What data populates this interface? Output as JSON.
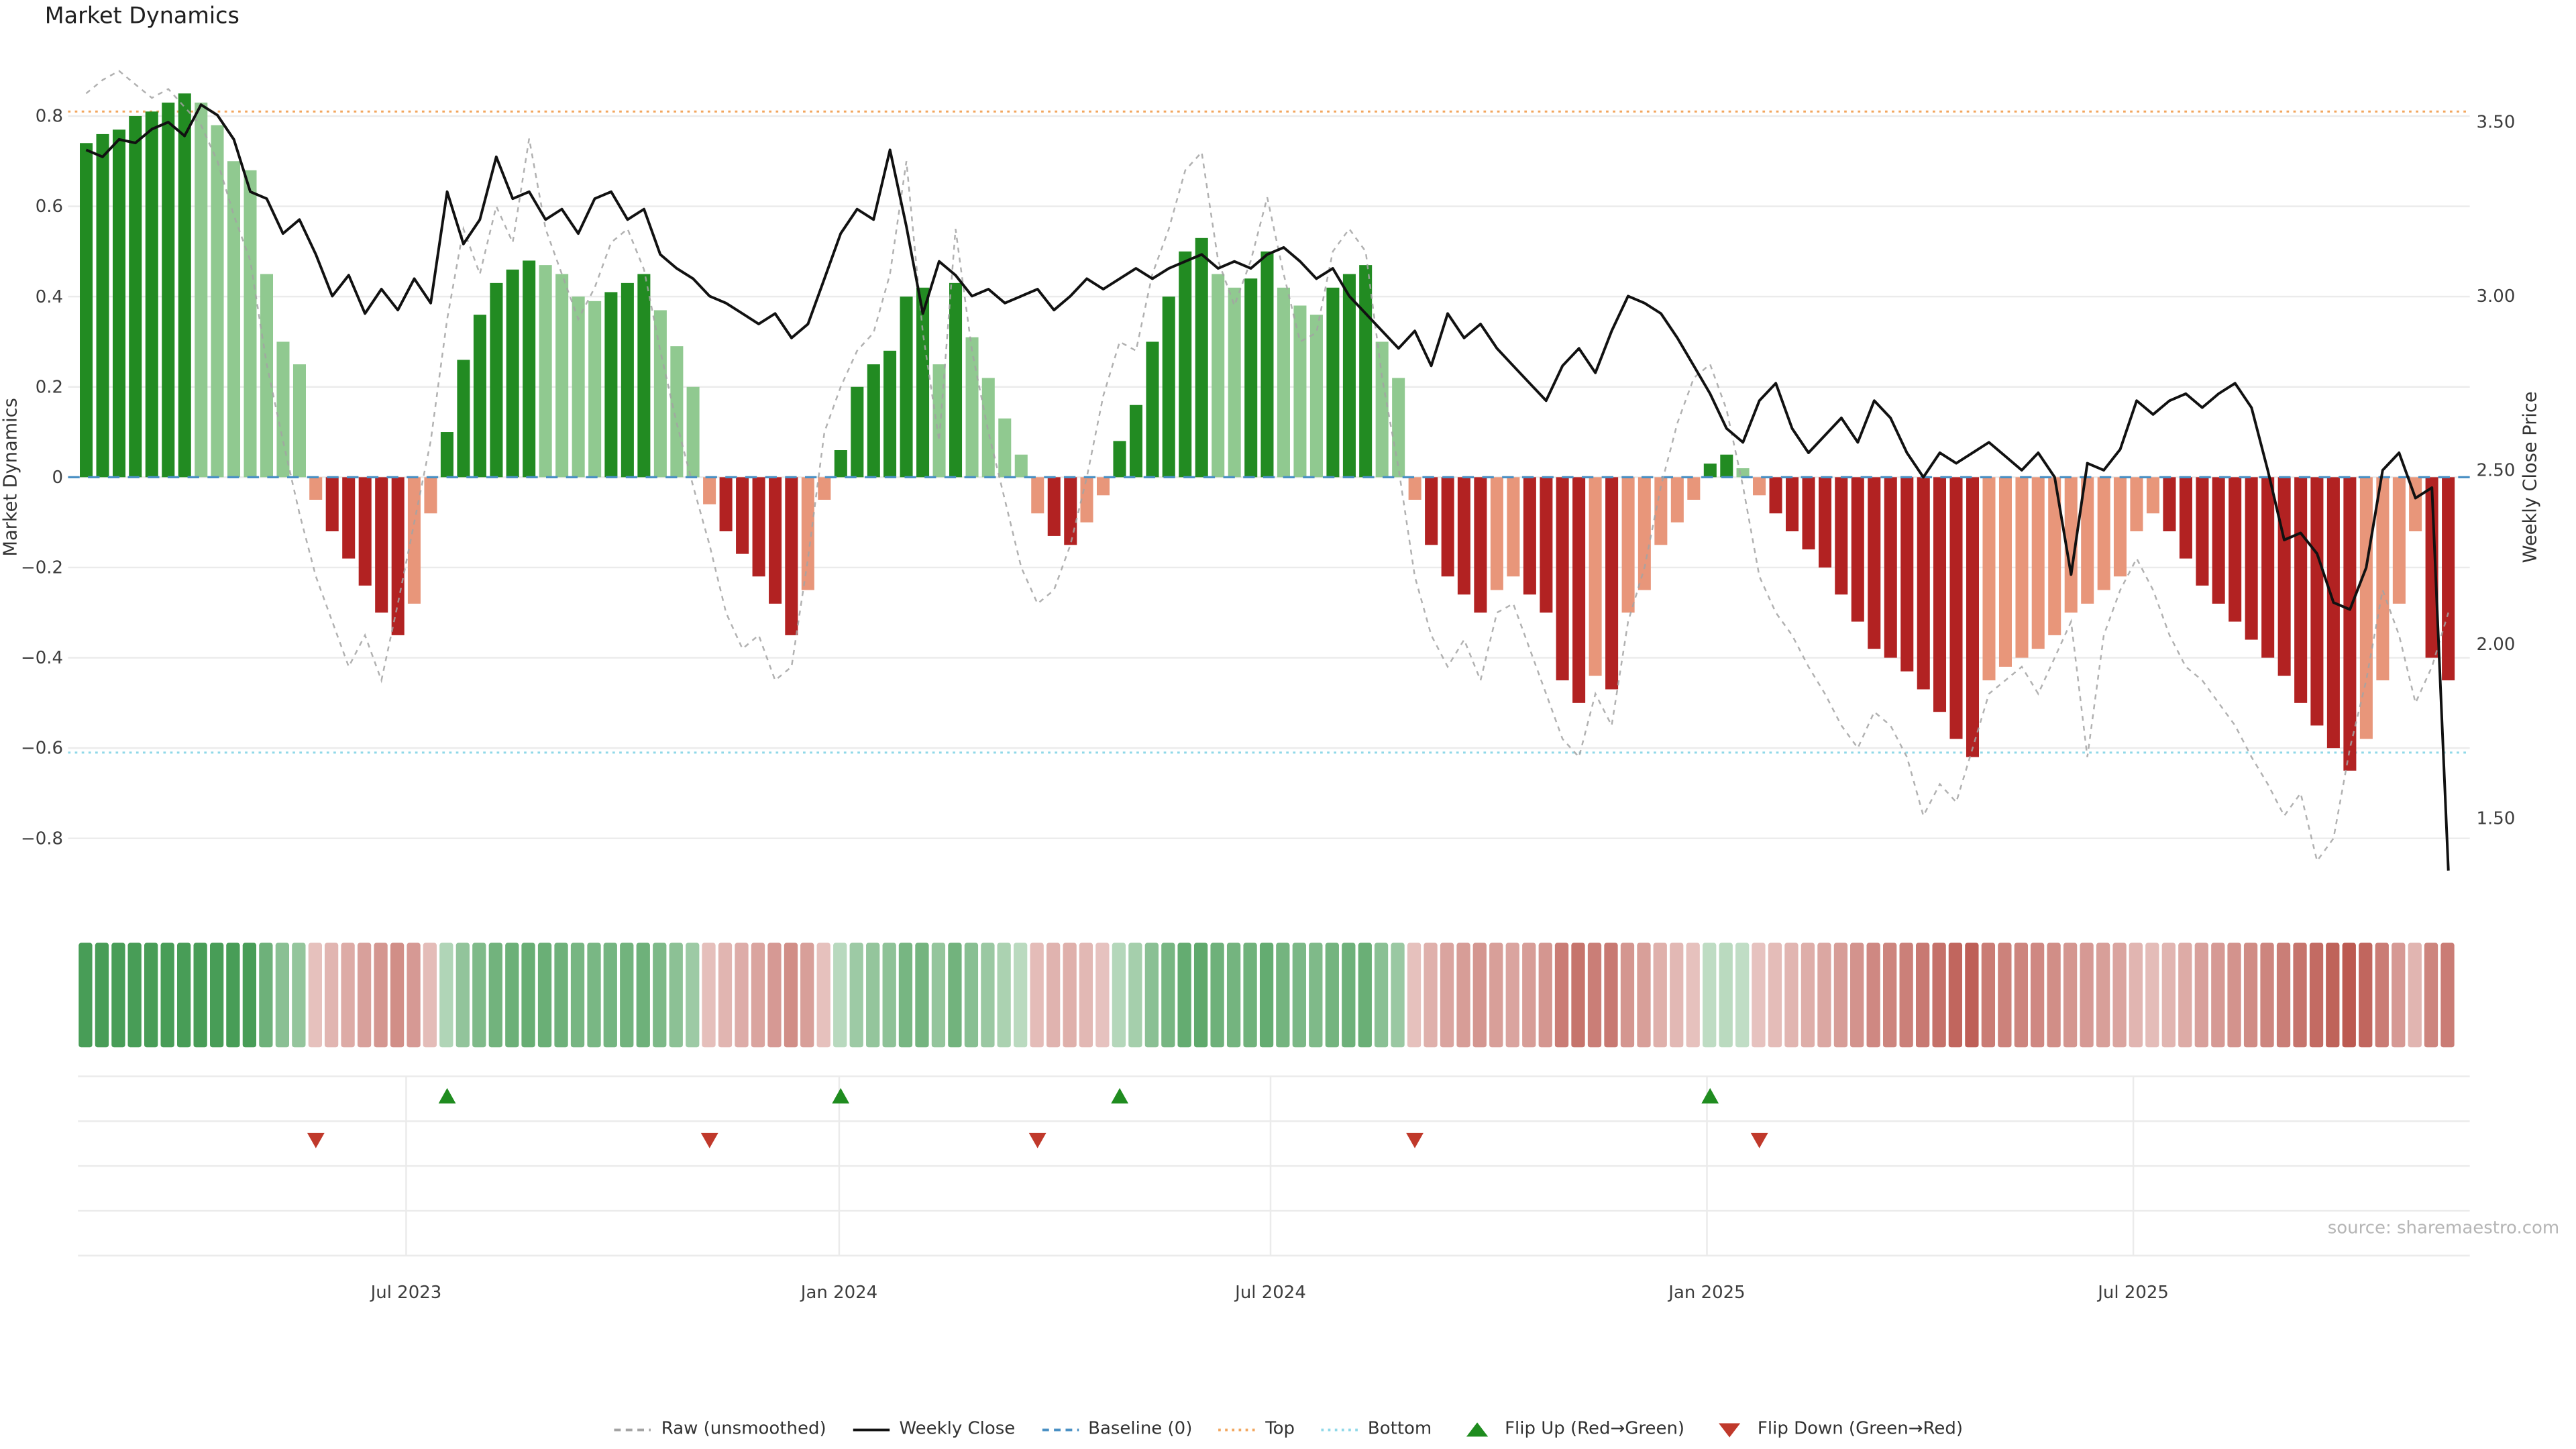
{
  "page": {
    "title": "Market Dynamics",
    "source_note": "source: sharemaestro.com"
  },
  "axes": {
    "left_label": "Market Dynamics",
    "right_label": "Weekly Close Price",
    "left_ticks": [
      0.8,
      0.6,
      0.4,
      0.2,
      0,
      -0.2,
      -0.4,
      -0.6,
      -0.8
    ],
    "right_ticks": [
      3.5,
      3.0,
      2.5,
      2.0,
      1.5
    ],
    "x_ticks": [
      {
        "label": "Jul 2023",
        "week": 19.5
      },
      {
        "label": "Jan 2024",
        "week": 45.9
      },
      {
        "label": "Jul 2024",
        "week": 72.2
      },
      {
        "label": "Jan 2025",
        "week": 98.8
      },
      {
        "label": "Jul 2025",
        "week": 124.8
      }
    ]
  },
  "legend": {
    "items": [
      {
        "label": "Raw (unsmoothed)",
        "swatch": "dashed-line",
        "color": "#a3a3a3"
      },
      {
        "label": "Weekly Close",
        "swatch": "solid-line",
        "color": "#111111"
      },
      {
        "label": "Baseline (0)",
        "swatch": "dashed-line",
        "color": "#4a90c4"
      },
      {
        "label": "Top",
        "swatch": "dotted-line",
        "color": "#f2a65e"
      },
      {
        "label": "Bottom",
        "swatch": "dotted-line",
        "color": "#8fd8e8"
      },
      {
        "label": "Flip Up (Red→Green)",
        "swatch": "triangle-up",
        "color": "#1f8c1f"
      },
      {
        "label": "Flip Down (Green→Red)",
        "swatch": "triangle-down",
        "color": "#c0392b"
      }
    ]
  },
  "colors": {
    "bar_green_strong": "#228B22",
    "bar_green_soft": "#90c990",
    "bar_red_strong": "#b22222",
    "bar_red_soft": "#e8967a",
    "weekly_close": "#111111",
    "raw": "#a3a3a3",
    "baseline": "#4a90c4",
    "top": "#f2a65e",
    "bottom": "#8fd8e8",
    "flip_up": "#1f8c1f",
    "flip_down": "#c0392b",
    "grid": "#ebebeb",
    "tick_text": "#3d3d3d"
  },
  "chart_data": {
    "type": "combo",
    "frequency": "weekly",
    "n_points": 145,
    "title": "Market Dynamics",
    "left_ylim": [
      -0.91,
      0.91
    ],
    "right_ylim": [
      1.3,
      3.66
    ],
    "baseline": 0,
    "top_line": 0.81,
    "bottom_line": -0.61,
    "flip_up_weeks": [
      22,
      46,
      63,
      99
    ],
    "flip_down_weeks": [
      14,
      38,
      58,
      81,
      102
    ],
    "heatmap": "strip of weekly cells colored from bar series (green positive, red negative, intensity = magnitude)",
    "series": [
      {
        "name": "Market Dynamics (smoothed bars)",
        "type": "bar",
        "axis": "left",
        "values": [
          0.74,
          0.76,
          0.77,
          0.8,
          0.81,
          0.83,
          0.85,
          0.83,
          0.78,
          0.7,
          0.68,
          0.45,
          0.3,
          0.25,
          -0.05,
          -0.12,
          -0.18,
          -0.24,
          -0.3,
          -0.35,
          -0.28,
          -0.08,
          0.1,
          0.26,
          0.36,
          0.43,
          0.46,
          0.48,
          0.47,
          0.45,
          0.4,
          0.39,
          0.41,
          0.43,
          0.45,
          0.37,
          0.29,
          0.2,
          -0.06,
          -0.12,
          -0.17,
          -0.22,
          -0.28,
          -0.35,
          -0.25,
          -0.05,
          0.06,
          0.2,
          0.25,
          0.28,
          0.4,
          0.42,
          0.25,
          0.43,
          0.31,
          0.22,
          0.13,
          0.05,
          -0.08,
          -0.13,
          -0.15,
          -0.1,
          -0.04,
          0.08,
          0.16,
          0.3,
          0.4,
          0.5,
          0.53,
          0.45,
          0.42,
          0.44,
          0.5,
          0.42,
          0.38,
          0.36,
          0.42,
          0.45,
          0.47,
          0.3,
          0.22,
          -0.05,
          -0.15,
          -0.22,
          -0.26,
          -0.3,
          -0.25,
          -0.22,
          -0.26,
          -0.3,
          -0.45,
          -0.5,
          -0.44,
          -0.47,
          -0.3,
          -0.25,
          -0.15,
          -0.1,
          -0.05,
          0.03,
          0.05,
          0.02,
          -0.04,
          -0.08,
          -0.12,
          -0.16,
          -0.2,
          -0.26,
          -0.32,
          -0.38,
          -0.4,
          -0.43,
          -0.47,
          -0.52,
          -0.58,
          -0.62,
          -0.45,
          -0.42,
          -0.4,
          -0.38,
          -0.35,
          -0.3,
          -0.28,
          -0.25,
          -0.22,
          -0.12,
          -0.08,
          -0.12,
          -0.18,
          -0.24,
          -0.28,
          -0.32,
          -0.36,
          -0.4,
          -0.44,
          -0.5,
          -0.55,
          -0.6,
          -0.65,
          -0.58,
          -0.45,
          -0.28,
          -0.12,
          -0.4,
          -0.45
        ]
      },
      {
        "name": "Raw (unsmoothed)",
        "type": "line",
        "line_style": "dashed",
        "axis": "left",
        "values": [
          0.85,
          0.88,
          0.9,
          0.87,
          0.84,
          0.86,
          0.82,
          0.78,
          0.7,
          0.58,
          0.48,
          0.25,
          0.08,
          -0.08,
          -0.22,
          -0.32,
          -0.42,
          -0.35,
          -0.45,
          -0.28,
          -0.1,
          0.08,
          0.35,
          0.55,
          0.45,
          0.6,
          0.52,
          0.75,
          0.55,
          0.45,
          0.35,
          0.42,
          0.52,
          0.55,
          0.46,
          0.28,
          0.12,
          -0.02,
          -0.15,
          -0.3,
          -0.38,
          -0.35,
          -0.45,
          -0.42,
          -0.18,
          0.1,
          0.2,
          0.28,
          0.32,
          0.45,
          0.7,
          0.32,
          0.08,
          0.55,
          0.28,
          0.1,
          -0.05,
          -0.2,
          -0.28,
          -0.25,
          -0.15,
          0.0,
          0.18,
          0.3,
          0.28,
          0.45,
          0.55,
          0.68,
          0.72,
          0.48,
          0.38,
          0.48,
          0.62,
          0.45,
          0.3,
          0.32,
          0.5,
          0.55,
          0.5,
          0.22,
          0.02,
          -0.22,
          -0.35,
          -0.42,
          -0.36,
          -0.45,
          -0.3,
          -0.28,
          -0.38,
          -0.48,
          -0.58,
          -0.62,
          -0.48,
          -0.55,
          -0.32,
          -0.2,
          -0.02,
          0.12,
          0.22,
          0.25,
          0.15,
          -0.02,
          -0.22,
          -0.3,
          -0.35,
          -0.42,
          -0.48,
          -0.55,
          -0.6,
          -0.52,
          -0.55,
          -0.62,
          -0.75,
          -0.68,
          -0.72,
          -0.6,
          -0.48,
          -0.45,
          -0.42,
          -0.48,
          -0.4,
          -0.32,
          -0.62,
          -0.35,
          -0.25,
          -0.18,
          -0.25,
          -0.35,
          -0.42,
          -0.45,
          -0.5,
          -0.55,
          -0.62,
          -0.68,
          -0.75,
          -0.7,
          -0.85,
          -0.8,
          -0.6,
          -0.45,
          -0.25,
          -0.35,
          -0.5,
          -0.42,
          -0.3
        ]
      },
      {
        "name": "Weekly Close",
        "type": "line",
        "axis": "right",
        "values": [
          3.42,
          3.4,
          3.45,
          3.44,
          3.48,
          3.5,
          3.46,
          3.55,
          3.52,
          3.45,
          3.3,
          3.28,
          3.18,
          3.22,
          3.12,
          3.0,
          3.06,
          2.95,
          3.02,
          2.96,
          3.05,
          2.98,
          3.3,
          3.15,
          3.22,
          3.4,
          3.28,
          3.3,
          3.22,
          3.25,
          3.18,
          3.28,
          3.3,
          3.22,
          3.25,
          3.12,
          3.08,
          3.05,
          3.0,
          2.98,
          2.95,
          2.92,
          2.95,
          2.88,
          2.92,
          3.05,
          3.18,
          3.25,
          3.22,
          3.42,
          3.2,
          2.95,
          3.1,
          3.06,
          3.0,
          3.02,
          2.98,
          3.0,
          3.02,
          2.96,
          3.0,
          3.05,
          3.02,
          3.05,
          3.08,
          3.05,
          3.08,
          3.1,
          3.12,
          3.08,
          3.1,
          3.08,
          3.12,
          3.14,
          3.1,
          3.05,
          3.08,
          3.0,
          2.95,
          2.9,
          2.85,
          2.9,
          2.8,
          2.95,
          2.88,
          2.92,
          2.85,
          2.8,
          2.75,
          2.7,
          2.8,
          2.85,
          2.78,
          2.9,
          3.0,
          2.98,
          2.95,
          2.88,
          2.8,
          2.72,
          2.62,
          2.58,
          2.7,
          2.75,
          2.62,
          2.55,
          2.6,
          2.65,
          2.58,
          2.7,
          2.65,
          2.55,
          2.48,
          2.55,
          2.52,
          2.55,
          2.58,
          2.54,
          2.5,
          2.55,
          2.48,
          2.2,
          2.52,
          2.5,
          2.56,
          2.7,
          2.66,
          2.7,
          2.72,
          2.68,
          2.72,
          2.75,
          2.68,
          2.5,
          2.3,
          2.32,
          2.26,
          2.12,
          2.1,
          2.22,
          2.5,
          2.55,
          2.42,
          2.45,
          1.35
        ]
      }
    ]
  }
}
